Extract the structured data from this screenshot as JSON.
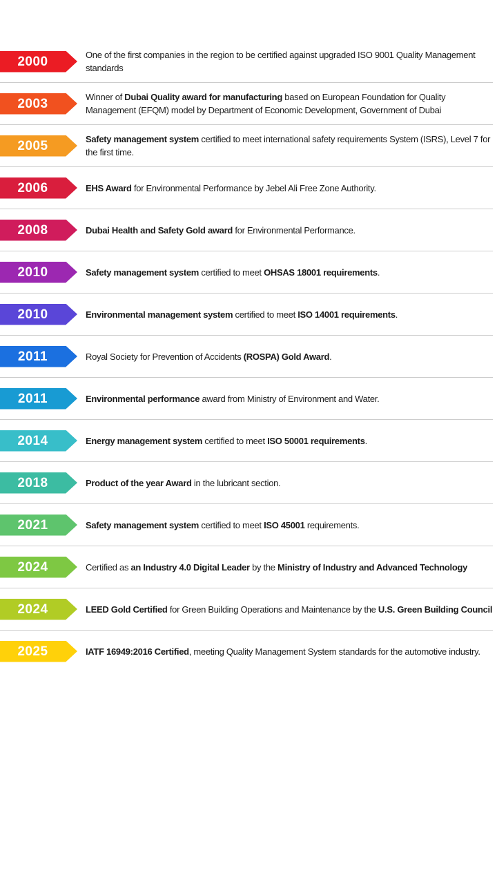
{
  "page": {
    "background": "#ffffff",
    "text_color": "#1c1c1c",
    "year_text_color": "#ffffff",
    "divider_color": "#cccccc"
  },
  "timeline": {
    "items": [
      {
        "year": "2000",
        "color": "#EB1C24",
        "segments": [
          {
            "text": "One of the first companies in the region to be certified against upgraded ISO 9001 Quality Management standards",
            "bold": false
          }
        ]
      },
      {
        "year": "2003",
        "color": "#F1511F",
        "segments": [
          {
            "text": "Winner of ",
            "bold": false
          },
          {
            "text": "Dubai Quality award for manufacturing",
            "bold": true
          },
          {
            "text": " based on European Foundation for Quality Management (EFQM) model by Department of Economic Development, Government of Dubai",
            "bold": false
          }
        ]
      },
      {
        "year": "2005",
        "color": "#F59B22",
        "segments": [
          {
            "text": "Safety management system",
            "bold": true
          },
          {
            "text": " certified to meet international safety requirements System (ISRS), Level 7 for the first time.",
            "bold": false
          }
        ]
      },
      {
        "year": "2006",
        "color": "#D91E3D",
        "segments": [
          {
            "text": "EHS Award",
            "bold": true
          },
          {
            "text": " for Environmental Performance by Jebel Ali Free Zone Authority.",
            "bold": false
          }
        ]
      },
      {
        "year": "2008",
        "color": "#D01C5C",
        "segments": [
          {
            "text": "Dubai Health and Safety Gold award",
            "bold": true
          },
          {
            "text": " for Environmental Performance.",
            "bold": false
          }
        ]
      },
      {
        "year": "2010",
        "color": "#9C28B1",
        "segments": [
          {
            "text": "Safety management system",
            "bold": true
          },
          {
            "text": " certified to meet ",
            "bold": false
          },
          {
            "text": "OHSAS 18001 requirements",
            "bold": true
          },
          {
            "text": ".",
            "bold": false
          }
        ]
      },
      {
        "year": "2010",
        "color": "#5A46D8",
        "segments": [
          {
            "text": "Environmental management system",
            "bold": true
          },
          {
            "text": " certified to meet ",
            "bold": false
          },
          {
            "text": "ISO 14001 requirements",
            "bold": true
          },
          {
            "text": ".",
            "bold": false
          }
        ]
      },
      {
        "year": "2011",
        "color": "#1B70E0",
        "segments": [
          {
            "text": "Royal Society for Prevention of Accidents ",
            "bold": false
          },
          {
            "text": "(ROSPA) Gold Award",
            "bold": true
          },
          {
            "text": ".",
            "bold": false
          }
        ]
      },
      {
        "year": "2011",
        "color": "#189BD3",
        "segments": [
          {
            "text": "Environmental performance",
            "bold": true
          },
          {
            "text": " award from Ministry of Environment and Water.",
            "bold": false
          }
        ]
      },
      {
        "year": "2014",
        "color": "#38BEC9",
        "segments": [
          {
            "text": "Energy management system",
            "bold": true
          },
          {
            "text": " certified to meet ",
            "bold": false
          },
          {
            "text": "ISO 50001 requirements",
            "bold": true
          },
          {
            "text": ".",
            "bold": false
          }
        ]
      },
      {
        "year": "2018",
        "color": "#3CBCA2",
        "segments": [
          {
            "text": "Product of the year Award",
            "bold": true
          },
          {
            "text": " in the lubricant section.",
            "bold": false
          }
        ]
      },
      {
        "year": "2021",
        "color": "#5EC46D",
        "segments": [
          {
            "text": "Safety management system",
            "bold": true
          },
          {
            "text": " certified to meet ",
            "bold": false
          },
          {
            "text": "ISO 45001",
            "bold": true
          },
          {
            "text": " requirements.",
            "bold": false
          }
        ]
      },
      {
        "year": "2024",
        "color": "#7EC843",
        "segments": [
          {
            "text": "Certified as ",
            "bold": false
          },
          {
            "text": "an Industry 4.0 Digital Leader",
            "bold": true
          },
          {
            "text": " by the ",
            "bold": false
          },
          {
            "text": "Ministry of Industry and Advanced Technology",
            "bold": true
          }
        ]
      },
      {
        "year": "2024",
        "color": "#B1CC25",
        "segments": [
          {
            "text": "LEED Gold Certified",
            "bold": true
          },
          {
            "text": " for Green Building Operations and Maintenance by the ",
            "bold": false
          },
          {
            "text": "U.S. Green Building Council",
            "bold": true
          }
        ]
      },
      {
        "year": "2025",
        "color": "#FFD10A",
        "segments": [
          {
            "text": "IATF 16949:2016 Certified",
            "bold": true
          },
          {
            "text": ", meeting Quality Management System standards for the automotive industry.",
            "bold": false
          }
        ]
      }
    ]
  }
}
